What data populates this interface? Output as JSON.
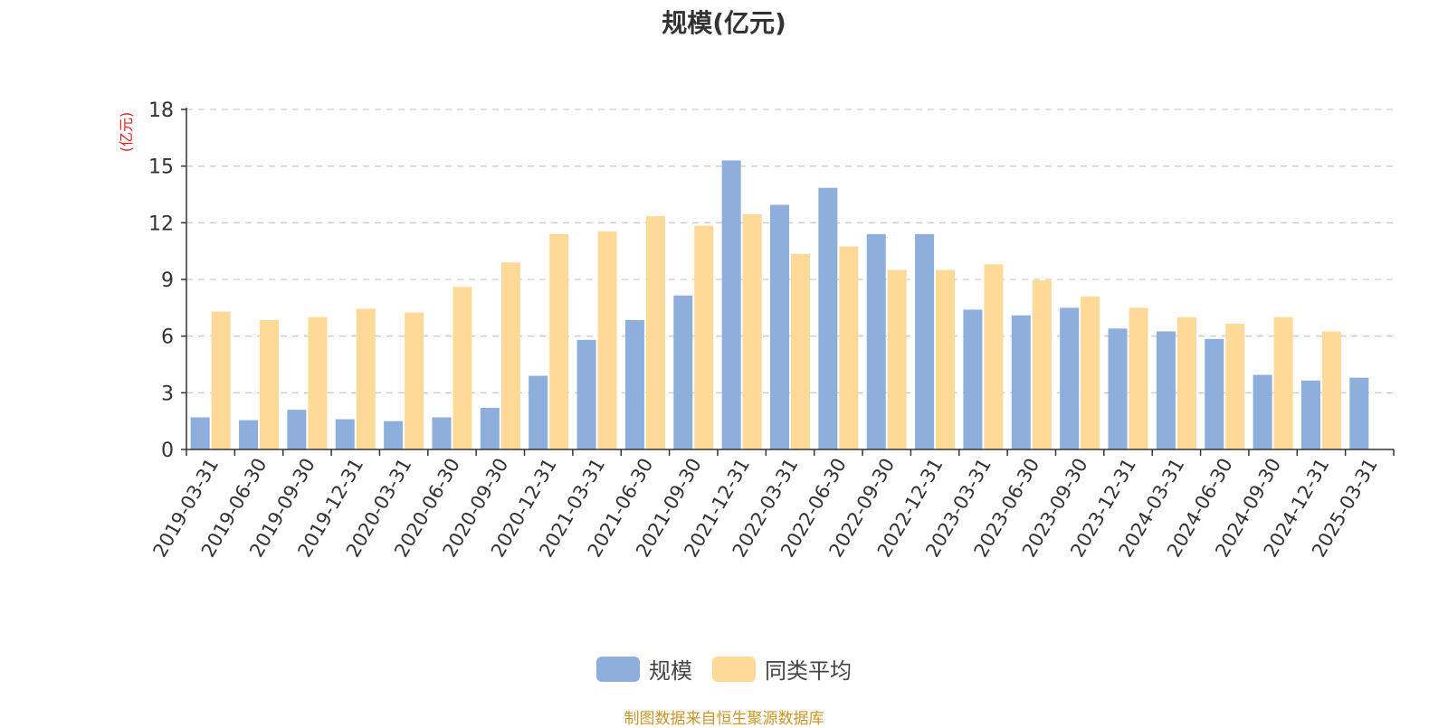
{
  "chart_data": {
    "type": "bar",
    "title": "规模(亿元)",
    "ylabel": "(亿元)",
    "ylim": [
      0,
      18
    ],
    "yticks": [
      0,
      3,
      6,
      9,
      12,
      15,
      18
    ],
    "grid": true,
    "legend_position": "bottom-center",
    "categories": [
      "2019-03-31",
      "2019-06-30",
      "2019-09-30",
      "2019-12-31",
      "2020-03-31",
      "2020-06-30",
      "2020-09-30",
      "2020-12-31",
      "2021-03-31",
      "2021-06-30",
      "2021-09-30",
      "2021-12-31",
      "2022-03-31",
      "2022-06-30",
      "2022-09-30",
      "2022-12-31",
      "2023-03-31",
      "2023-06-30",
      "2023-09-30",
      "2023-12-31",
      "2024-03-31",
      "2024-06-30",
      "2024-09-30",
      "2024-12-31",
      "2025-03-31"
    ],
    "series": [
      {
        "name": "规模",
        "color": "#8eaedb",
        "values": [
          1.7,
          1.55,
          2.1,
          1.6,
          1.5,
          1.7,
          2.2,
          3.9,
          5.8,
          6.85,
          8.15,
          15.3,
          12.95,
          13.85,
          11.4,
          11.4,
          7.4,
          7.1,
          7.5,
          6.4,
          6.25,
          5.85,
          3.95,
          3.65,
          3.8
        ]
      },
      {
        "name": "同类平均",
        "color": "#ffd998",
        "values": [
          7.3,
          6.85,
          7.0,
          7.45,
          7.25,
          8.6,
          9.9,
          11.4,
          11.55,
          12.35,
          11.85,
          12.45,
          10.35,
          10.75,
          9.5,
          9.5,
          9.8,
          8.95,
          8.1,
          7.5,
          7.0,
          6.65,
          7.0,
          6.25,
          null
        ]
      }
    ]
  },
  "legend": {
    "items": [
      "规模",
      "同类平均"
    ]
  },
  "footer": {
    "source": "制图数据来自恒生聚源数据库"
  }
}
